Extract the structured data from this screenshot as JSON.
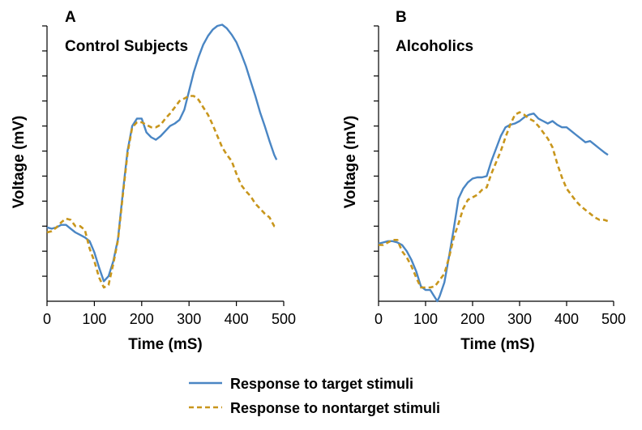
{
  "chart_data": [
    {
      "type": "line",
      "panel_letter": "A",
      "title": "Control Subjects",
      "xlabel": "Time  (mS)",
      "ylabel": "Voltage (mV)",
      "xlim": [
        0,
        500
      ],
      "ylim": [
        0,
        11
      ],
      "xticks": [
        0,
        100,
        200,
        300,
        400,
        500
      ],
      "xtick_labels": [
        "0",
        "100",
        "200",
        "300",
        "400",
        "500"
      ],
      "y_tick_count": 11,
      "series": [
        {
          "name": "Response to target stimuli",
          "x": [
            0,
            10,
            20,
            30,
            40,
            50,
            60,
            70,
            80,
            90,
            100,
            110,
            120,
            130,
            140,
            150,
            160,
            170,
            180,
            190,
            200,
            210,
            220,
            230,
            240,
            250,
            260,
            270,
            280,
            290,
            300,
            310,
            320,
            330,
            340,
            350,
            360,
            370,
            380,
            390,
            400,
            410,
            420,
            430,
            440,
            450,
            460,
            470,
            480,
            485
          ],
          "values": [
            2.95,
            2.9,
            2.95,
            3.05,
            3.05,
            2.9,
            2.75,
            2.65,
            2.55,
            2.4,
            1.95,
            1.35,
            0.8,
            1.0,
            1.6,
            2.5,
            4.3,
            6.0,
            7.0,
            7.3,
            7.3,
            6.75,
            6.55,
            6.45,
            6.6,
            6.8,
            7.0,
            7.1,
            7.25,
            7.65,
            8.4,
            9.15,
            9.75,
            10.25,
            10.6,
            10.85,
            11.0,
            11.05,
            10.9,
            10.65,
            10.35,
            9.9,
            9.4,
            8.8,
            8.2,
            7.55,
            7.0,
            6.4,
            5.85,
            5.65
          ]
        },
        {
          "name": "Response to nontarget stimuli",
          "x": [
            0,
            10,
            20,
            30,
            40,
            50,
            60,
            70,
            80,
            90,
            100,
            110,
            120,
            130,
            140,
            150,
            160,
            170,
            180,
            190,
            200,
            210,
            220,
            230,
            240,
            250,
            260,
            270,
            280,
            290,
            300,
            310,
            320,
            330,
            340,
            350,
            360,
            370,
            380,
            390,
            400,
            410,
            420,
            430,
            440,
            450,
            460,
            470,
            480,
            485
          ],
          "values": [
            2.75,
            2.8,
            2.95,
            3.15,
            3.3,
            3.25,
            3.0,
            3.0,
            2.85,
            2.1,
            1.6,
            0.95,
            0.55,
            0.65,
            1.5,
            2.45,
            4.2,
            5.9,
            6.95,
            7.15,
            7.15,
            7.05,
            6.95,
            6.95,
            7.05,
            7.3,
            7.5,
            7.75,
            8.0,
            8.1,
            8.2,
            8.2,
            8.05,
            7.75,
            7.45,
            7.05,
            6.6,
            6.15,
            5.85,
            5.6,
            5.1,
            4.65,
            4.4,
            4.2,
            3.9,
            3.7,
            3.5,
            3.35,
            3.0,
            2.95
          ]
        }
      ]
    },
    {
      "type": "line",
      "panel_letter": "B",
      "title": "Alcoholics",
      "xlabel": "Time (mS)",
      "ylabel": "Voltage (mV)",
      "xlim": [
        0,
        500
      ],
      "ylim": [
        0,
        11
      ],
      "xticks": [
        0,
        100,
        200,
        300,
        400,
        500
      ],
      "xtick_labels": [
        "0",
        "100",
        "200",
        "300",
        "400",
        "500"
      ],
      "y_tick_count": 11,
      "series": [
        {
          "name": "Response to target stimuli",
          "x": [
            0,
            10,
            20,
            30,
            40,
            50,
            60,
            70,
            80,
            90,
            100,
            110,
            120,
            125,
            130,
            140,
            150,
            160,
            170,
            180,
            190,
            200,
            210,
            220,
            230,
            240,
            250,
            260,
            270,
            280,
            290,
            300,
            310,
            320,
            330,
            340,
            350,
            360,
            370,
            380,
            390,
            400,
            410,
            420,
            430,
            440,
            450,
            460,
            470,
            480,
            488
          ],
          "values": [
            2.3,
            2.35,
            2.4,
            2.4,
            2.35,
            2.25,
            2.0,
            1.65,
            1.2,
            0.6,
            0.45,
            0.45,
            0.15,
            0.0,
            0.2,
            0.75,
            1.8,
            2.9,
            4.1,
            4.5,
            4.75,
            4.9,
            4.95,
            4.95,
            5.0,
            5.6,
            6.1,
            6.6,
            6.95,
            7.05,
            7.1,
            7.2,
            7.35,
            7.45,
            7.5,
            7.3,
            7.2,
            7.1,
            7.2,
            7.05,
            6.95,
            6.95,
            6.8,
            6.65,
            6.5,
            6.35,
            6.4,
            6.25,
            6.1,
            5.95,
            5.85
          ]
        },
        {
          "name": "Response to nontarget stimuli",
          "x": [
            0,
            10,
            20,
            30,
            40,
            50,
            60,
            70,
            80,
            90,
            100,
            110,
            120,
            130,
            140,
            150,
            160,
            170,
            180,
            190,
            200,
            210,
            220,
            230,
            240,
            250,
            260,
            270,
            280,
            290,
            300,
            310,
            320,
            330,
            340,
            350,
            360,
            370,
            380,
            390,
            400,
            410,
            420,
            430,
            440,
            450,
            460,
            470,
            480,
            488
          ],
          "values": [
            2.25,
            2.25,
            2.35,
            2.45,
            2.45,
            2.0,
            1.75,
            1.4,
            0.95,
            0.55,
            0.55,
            0.55,
            0.6,
            0.85,
            1.1,
            1.75,
            2.55,
            3.1,
            3.7,
            4.05,
            4.15,
            4.25,
            4.45,
            4.55,
            5.1,
            5.55,
            6.0,
            6.55,
            7.05,
            7.45,
            7.55,
            7.45,
            7.3,
            7.2,
            7.0,
            6.75,
            6.5,
            6.15,
            5.5,
            4.95,
            4.5,
            4.25,
            4.0,
            3.8,
            3.65,
            3.5,
            3.35,
            3.25,
            3.25,
            3.2
          ]
        }
      ]
    }
  ],
  "legend": {
    "items": [
      {
        "label": "Response to target stimuli",
        "color": "#4a86c4",
        "style": "solid"
      },
      {
        "label": "Response to nontarget stimuli",
        "color": "#c8961c",
        "style": "dashed"
      }
    ]
  },
  "colors": {
    "target": "#4a86c4",
    "nontarget": "#c8961c",
    "axis": "#000000"
  }
}
